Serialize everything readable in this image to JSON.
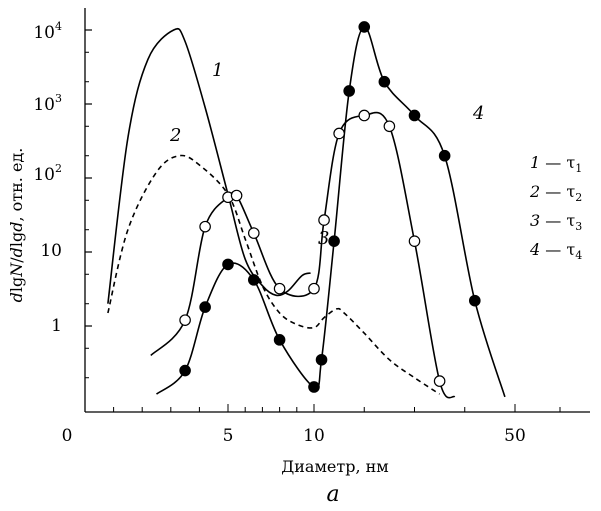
{
  "chart_data": {
    "type": "line",
    "xlabel": "Диаметр, нм",
    "ylabel": "dlgN/dlgd, отн. ед.",
    "ylabel_parts": {
      "symbol": "d",
      "log1": "lg",
      "N": "N",
      "slash": "/",
      "log2": "lg",
      "d2": "d",
      "rest": ", отн. ед."
    },
    "panel_label": "a",
    "x_tick_labels": [
      "0",
      "5",
      "10",
      "50"
    ],
    "y_tick_labels": [
      {
        "base": "1",
        "exp": ""
      },
      {
        "base": "10",
        "exp": ""
      },
      {
        "base": "10",
        "exp": "2"
      },
      {
        "base": "10",
        "exp": "3"
      },
      {
        "base": "10",
        "exp": "4"
      }
    ],
    "y_scale": "log",
    "ylim": [
      0.12,
      20000
    ],
    "legend": {
      "placement": "right",
      "entries": [
        {
          "num": "1",
          "dash": "—",
          "tau": "τ",
          "sub": "1"
        },
        {
          "num": "2",
          "dash": "—",
          "tau": "τ",
          "sub": "2"
        },
        {
          "num": "3",
          "dash": "—",
          "tau": "τ",
          "sub": "3"
        },
        {
          "num": "4",
          "dash": "—",
          "tau": "τ",
          "sub": "4"
        }
      ]
    },
    "series": [
      {
        "name": "1",
        "style": "solid",
        "marker": "none",
        "x": [
          0.8,
          1.5,
          2.2,
          3.1,
          3.5,
          4.2,
          5.0,
          6.0,
          7.0,
          7.8,
          8.5,
          9.3,
          9.8
        ],
        "y": [
          2,
          350,
          4000,
          10000,
          7000,
          900,
          60,
          8,
          3.5,
          2.6,
          3.0,
          4.8,
          5.2
        ]
      },
      {
        "name": "2",
        "style": "dashed",
        "marker": "none",
        "x": [
          0.8,
          1.5,
          2.5,
          3.3,
          4.0,
          5.0,
          6.0,
          7.0,
          8.0,
          9.0,
          10.0,
          12.0,
          14.5,
          16.0,
          20.0,
          25.0,
          30.0,
          35.0
        ],
        "y": [
          1.5,
          20,
          120,
          200,
          150,
          60,
          15,
          3.5,
          1.5,
          1.05,
          0.95,
          1.3,
          1.7,
          1.5,
          0.8,
          0.35,
          0.2,
          0.12
        ]
      },
      {
        "name": "3",
        "style": "solid",
        "marker": "open-circle",
        "x": [
          2.3,
          3.5,
          4.2,
          5.0,
          5.5,
          6.5,
          8.0,
          10.0,
          12.0,
          15.0,
          20.0,
          25.0,
          30.0,
          35.0,
          38.0
        ],
        "y": [
          0.4,
          1.2,
          22,
          55,
          58,
          18,
          3.2,
          3.2,
          27,
          400,
          700,
          500,
          14,
          0.18,
          0.11
        ]
      },
      {
        "name": "4",
        "style": "solid",
        "marker": "filled-circle",
        "x": [
          2.5,
          3.5,
          4.2,
          5.0,
          6.5,
          8.0,
          10.0,
          11.5,
          14.0,
          17.0,
          20.0,
          24.0,
          30.0,
          36.0,
          42.0,
          48.0
        ],
        "y": [
          0.12,
          0.25,
          1.8,
          6.8,
          4.2,
          0.65,
          0.15,
          0.35,
          14,
          1500,
          11000,
          2000,
          700,
          200,
          2.2,
          0.11
        ]
      }
    ]
  }
}
